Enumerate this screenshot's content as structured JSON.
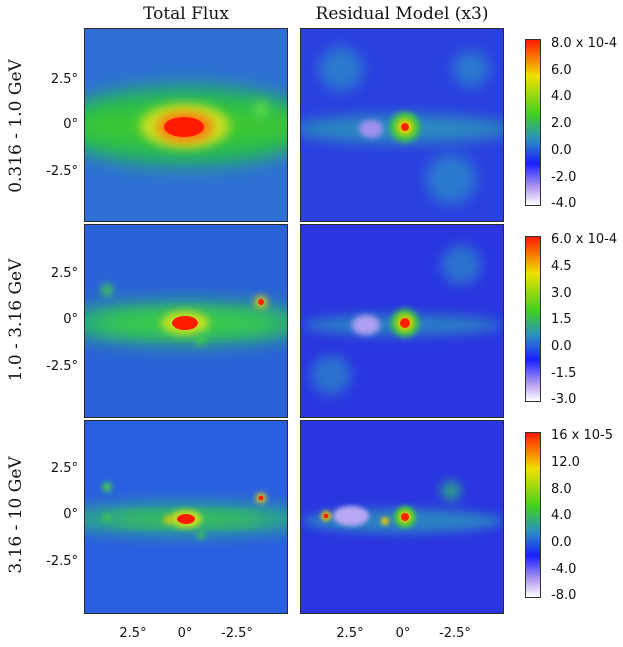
{
  "columns": {
    "left": "Total Flux",
    "right": "Residual Model (x3)"
  },
  "rows": [
    {
      "label": "0.316 - 1.0 GeV",
      "colorbar": [
        "8.0 x 10-4",
        "6.0",
        "4.0",
        "2.0",
        "0.0",
        "-2.0",
        "-4.0"
      ],
      "y_ticks": [
        "2.5°",
        "0°",
        "-2.5°"
      ]
    },
    {
      "label": "1.0 - 3.16 GeV",
      "colorbar": [
        "6.0 x 10-4",
        "4.5",
        "3.0",
        "1.5",
        "0.0",
        "-1.5",
        "-3.0"
      ],
      "y_ticks": [
        "2.5°",
        "0°",
        "-2.5°"
      ]
    },
    {
      "label": "3.16 - 10 GeV",
      "colorbar": [
        "16 x 10-5",
        "12.0",
        "8.0",
        "4.0",
        "0.0",
        "-4.0",
        "-8.0"
      ],
      "y_ticks": [
        "2.5°",
        "0°",
        "-2.5°"
      ]
    }
  ],
  "x_ticks_left": [
    "2.5°",
    "0°",
    "-2.5°"
  ],
  "x_ticks_right": [
    "2.5°",
    "0°",
    "-2.5°"
  ],
  "colormap": [
    "#ffffff",
    "#c8a8f0",
    "#1020ff",
    "#2a7ad8",
    "#20c020",
    "#e8e800",
    "#ff2000"
  ]
}
